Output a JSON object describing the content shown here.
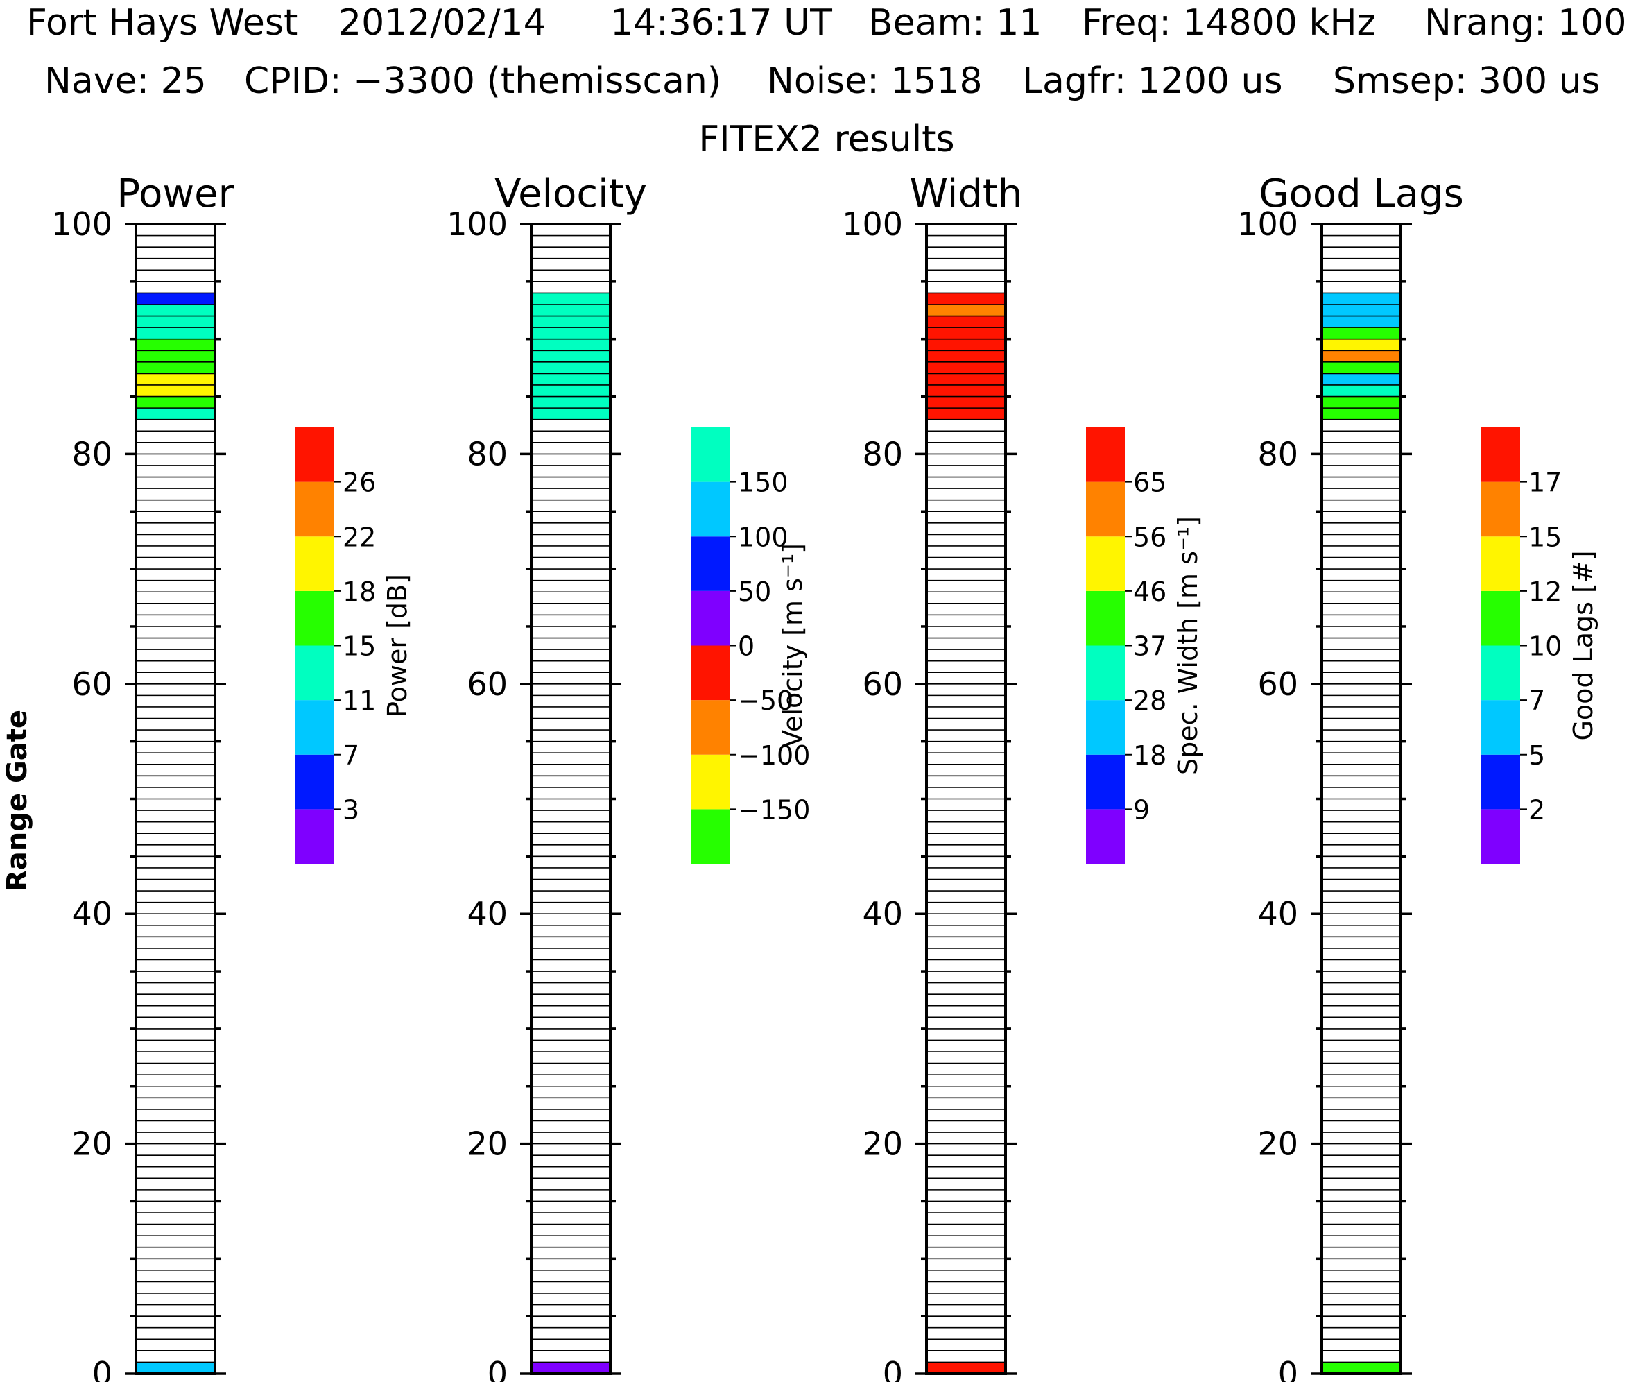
{
  "header": {
    "line1": {
      "site": "Fort Hays West",
      "date": "2012/02/14",
      "time": "14:36:17 UT",
      "beam": "Beam: 11",
      "freq": "Freq: 14800 kHz",
      "nrang": "Nrang: 100"
    },
    "line2": {
      "nave": "Nave: 25",
      "cpid": "CPID: −3300 (themisscan)",
      "noise": "Noise: 1518",
      "lagfr": "Lagfr: 1200 us",
      "smsep": "Smsep: 300 us"
    },
    "subtitle": "FITEX2 results"
  },
  "colors": {
    "purple": "#7f00ff",
    "blue": "#0019ff",
    "cyan": "#00c8ff",
    "teal": "#00ffc0",
    "green": "#26ff00",
    "yellow": "#fff500",
    "orange": "#ff8200",
    "red": "#ff1400"
  },
  "chart_data": {
    "type": "range-gate panels",
    "y_axis": {
      "label": "Range Gate",
      "range": [
        0,
        100
      ],
      "ticks": [
        "0",
        "20",
        "40",
        "60",
        "80",
        "100"
      ],
      "gates": 100
    },
    "panels": [
      {
        "title": "Power",
        "colorbar": {
          "title": "Power [dB]",
          "colors": [
            "purple",
            "blue",
            "cyan",
            "teal",
            "green",
            "yellow",
            "orange",
            "red"
          ],
          "tick_labels": [
            "3",
            "7",
            "11",
            "15",
            "18",
            "22",
            "26"
          ]
        },
        "cells": [
          {
            "gate": 0,
            "color": "cyan"
          },
          {
            "gate": 83,
            "color": "teal"
          },
          {
            "gate": 84,
            "color": "green"
          },
          {
            "gate": 85,
            "color": "yellow"
          },
          {
            "gate": 86,
            "color": "yellow"
          },
          {
            "gate": 87,
            "color": "green"
          },
          {
            "gate": 88,
            "color": "green"
          },
          {
            "gate": 89,
            "color": "green"
          },
          {
            "gate": 90,
            "color": "teal"
          },
          {
            "gate": 91,
            "color": "teal"
          },
          {
            "gate": 92,
            "color": "teal"
          },
          {
            "gate": 93,
            "color": "blue"
          }
        ]
      },
      {
        "title": "Velocity",
        "colorbar": {
          "title": "Velocity [m s⁻¹]",
          "colors": [
            "green",
            "yellow",
            "orange",
            "red",
            "purple",
            "blue",
            "cyan",
            "teal"
          ],
          "tick_labels": [
            "−150",
            "−100",
            "−50",
            "0",
            "50",
            "100",
            "150"
          ]
        },
        "cells": [
          {
            "gate": 0,
            "color": "purple"
          },
          {
            "gate": 83,
            "color": "teal"
          },
          {
            "gate": 84,
            "color": "teal"
          },
          {
            "gate": 85,
            "color": "teal"
          },
          {
            "gate": 86,
            "color": "teal"
          },
          {
            "gate": 87,
            "color": "teal"
          },
          {
            "gate": 88,
            "color": "teal"
          },
          {
            "gate": 89,
            "color": "teal"
          },
          {
            "gate": 90,
            "color": "teal"
          },
          {
            "gate": 91,
            "color": "teal"
          },
          {
            "gate": 92,
            "color": "teal"
          },
          {
            "gate": 93,
            "color": "teal"
          }
        ]
      },
      {
        "title": "Width",
        "colorbar": {
          "title": "Spec. Width [m s⁻¹]",
          "colors": [
            "purple",
            "blue",
            "cyan",
            "teal",
            "green",
            "yellow",
            "orange",
            "red"
          ],
          "tick_labels": [
            "9",
            "18",
            "28",
            "37",
            "46",
            "56",
            "65"
          ]
        },
        "cells": [
          {
            "gate": 0,
            "color": "red"
          },
          {
            "gate": 83,
            "color": "red"
          },
          {
            "gate": 84,
            "color": "red"
          },
          {
            "gate": 85,
            "color": "red"
          },
          {
            "gate": 86,
            "color": "red"
          },
          {
            "gate": 87,
            "color": "red"
          },
          {
            "gate": 88,
            "color": "red"
          },
          {
            "gate": 89,
            "color": "red"
          },
          {
            "gate": 90,
            "color": "red"
          },
          {
            "gate": 91,
            "color": "red"
          },
          {
            "gate": 92,
            "color": "orange"
          },
          {
            "gate": 93,
            "color": "red"
          }
        ]
      },
      {
        "title": "Good Lags",
        "colorbar": {
          "title": "Good Lags [#]",
          "colors": [
            "purple",
            "blue",
            "cyan",
            "teal",
            "green",
            "yellow",
            "orange",
            "red"
          ],
          "tick_labels": [
            "2",
            "5",
            "7",
            "10",
            "12",
            "15",
            "17"
          ]
        },
        "cells": [
          {
            "gate": 0,
            "color": "green"
          },
          {
            "gate": 83,
            "color": "green"
          },
          {
            "gate": 84,
            "color": "green"
          },
          {
            "gate": 85,
            "color": "teal"
          },
          {
            "gate": 86,
            "color": "cyan"
          },
          {
            "gate": 87,
            "color": "green"
          },
          {
            "gate": 88,
            "color": "orange"
          },
          {
            "gate": 89,
            "color": "yellow"
          },
          {
            "gate": 90,
            "color": "green"
          },
          {
            "gate": 91,
            "color": "cyan"
          },
          {
            "gate": 92,
            "color": "cyan"
          },
          {
            "gate": 93,
            "color": "cyan"
          }
        ]
      }
    ]
  }
}
